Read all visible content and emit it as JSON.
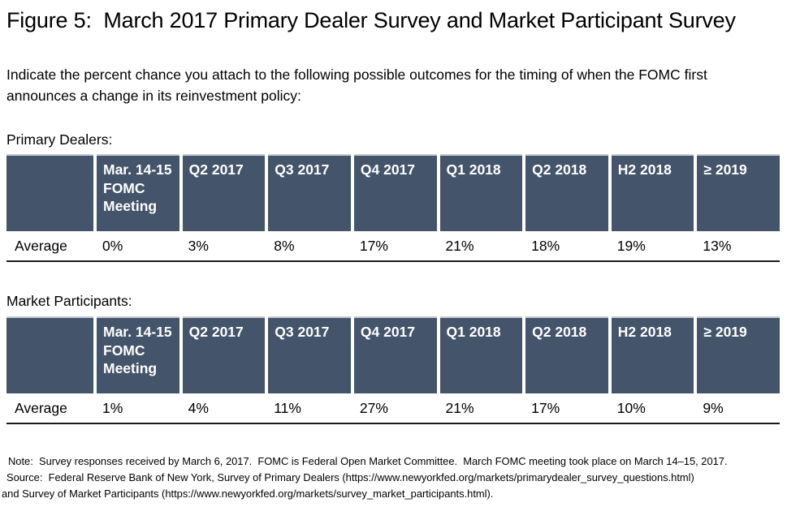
{
  "figure": {
    "title": "Figure 5:  March 2017 Primary Dealer Survey and Market Participant Survey",
    "prompt": "Indicate the percent chance you attach to the following possible outcomes for the timing of when the FOMC first announces a change in its reinvestment policy:"
  },
  "columns": {
    "c0": "",
    "c1": "Mar. 14-15 FOMC Meeting",
    "c2": "Q2 2017",
    "c3": "Q3 2017",
    "c4": "Q4 2017",
    "c5": "Q1 2018",
    "c6": "Q2 2018",
    "c7": "H2 2018",
    "c8": "≥ 2019"
  },
  "tables": [
    {
      "section_label": "Primary Dealers:",
      "row_label": "Average",
      "values": [
        "0%",
        "3%",
        "8%",
        "17%",
        "21%",
        "18%",
        "19%",
        "13%"
      ]
    },
    {
      "section_label": "Market Participants:",
      "row_label": "Average",
      "values": [
        "1%",
        "4%",
        "11%",
        "27%",
        "21%",
        "17%",
        "10%",
        "9%"
      ]
    }
  ],
  "footnotes": {
    "note": "Note:  Survey responses received by March 6, 2017.  FOMC is Federal Open Market Committee.  March FOMC meeting took place on March 14–15, 2017.",
    "source_line1": "Source:  Federal Reserve Bank of New York, Survey of Primary Dealers (https://www.newyorkfed.org/markets/primarydealer_survey_questions.html)",
    "source_line2": "and Survey of Market Participants (https://www.newyorkfed.org/markets/survey_market_participants.html)."
  },
  "colors": {
    "header_bg": "#44546A",
    "header_text": "#FFFFFF",
    "table_bottom_rule": "#1A1A1A"
  }
}
